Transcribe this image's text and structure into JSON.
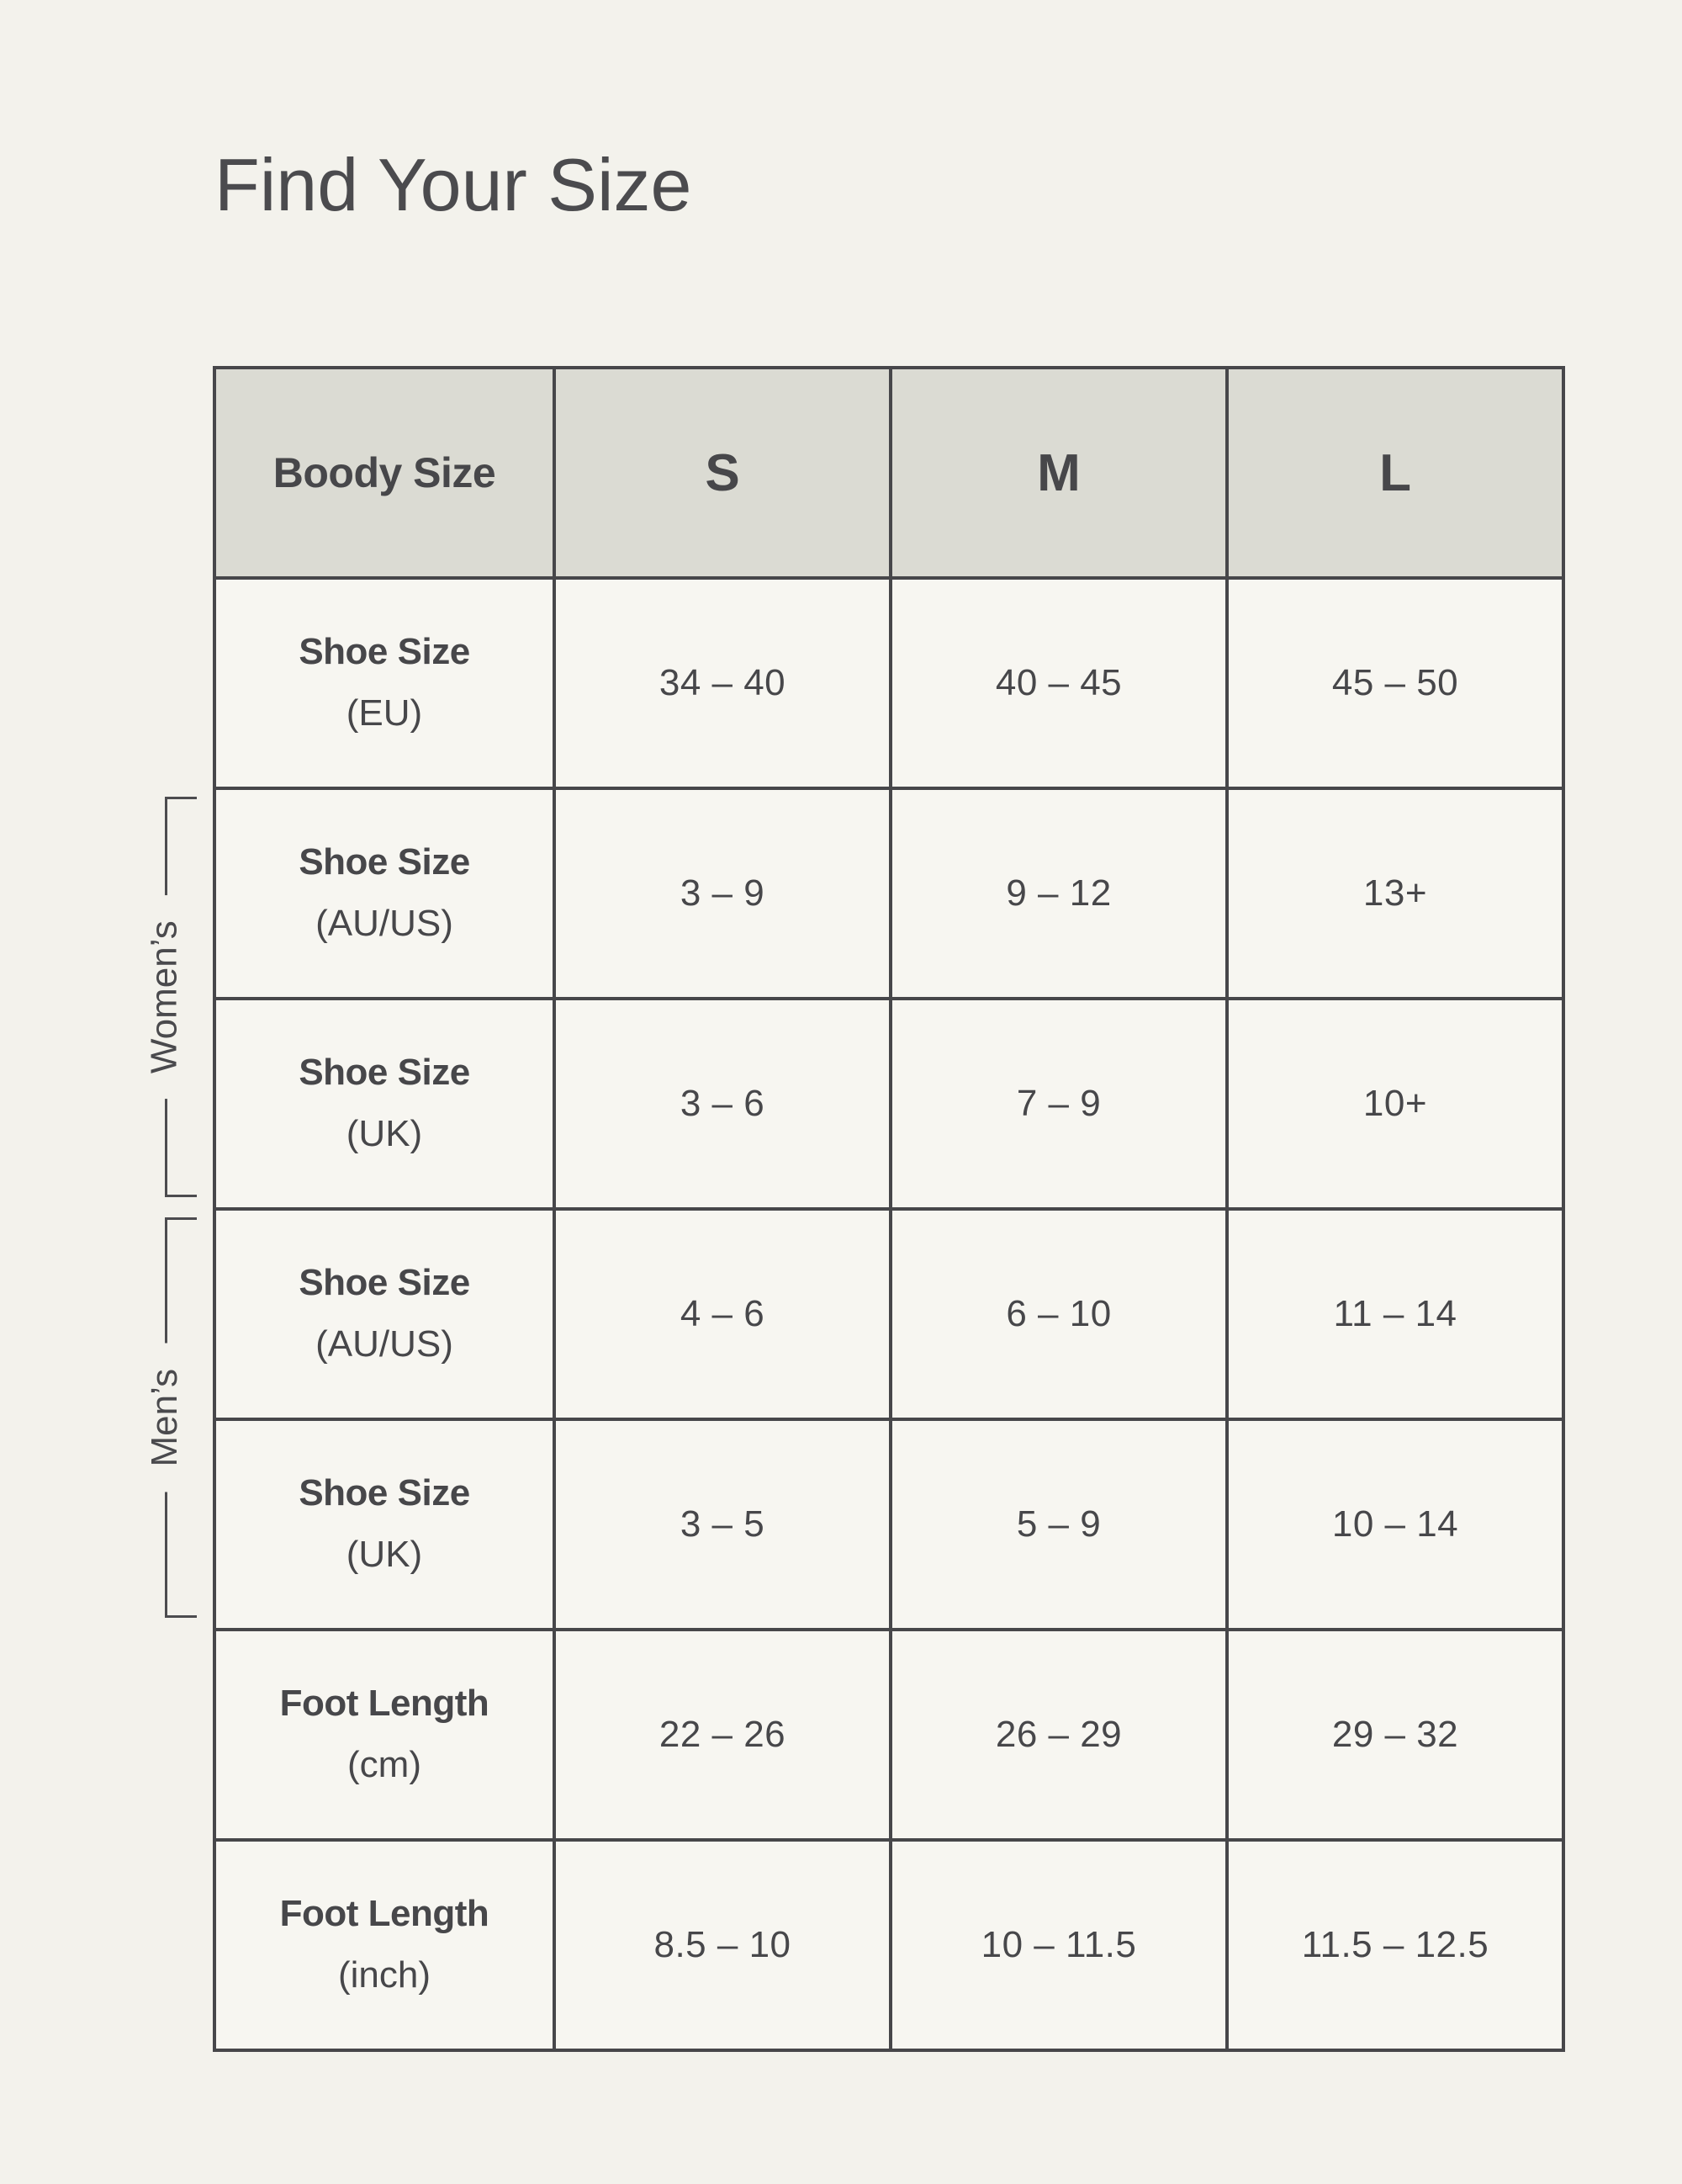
{
  "page": {
    "title": "Find Your Size"
  },
  "colors": {
    "page_bg": "#f3f2ec",
    "cell_bg": "#f7f6f1",
    "header_bg": "#dbdbd3",
    "grid_border": "#47474a",
    "text": "#47474a"
  },
  "table": {
    "corner_label": "Boody Size",
    "size_columns": [
      "S",
      "M",
      "L"
    ],
    "rows": [
      {
        "label_main": "Shoe Size",
        "label_sub": "(EU)",
        "group": "",
        "values": [
          "34 – 40",
          "40 – 45",
          "45 – 50"
        ]
      },
      {
        "label_main": "Shoe Size",
        "label_sub": "(AU/US)",
        "group": "womens",
        "values": [
          "3 – 9",
          "9 – 12",
          "13+"
        ]
      },
      {
        "label_main": "Shoe Size",
        "label_sub": "(UK)",
        "group": "womens",
        "values": [
          "3 – 6",
          "7 – 9",
          "10+"
        ]
      },
      {
        "label_main": "Shoe Size",
        "label_sub": "(AU/US)",
        "group": "mens",
        "values": [
          "4 – 6",
          "6 – 10",
          "11 – 14"
        ]
      },
      {
        "label_main": "Shoe Size",
        "label_sub": "(UK)",
        "group": "mens",
        "values": [
          "3 – 5",
          "5 – 9",
          "10 – 14"
        ]
      },
      {
        "label_main": "Foot Length",
        "label_sub": "(cm)",
        "group": "",
        "values": [
          "22 – 26",
          "26 – 29",
          "29 – 32"
        ]
      },
      {
        "label_main": "Foot Length",
        "label_sub": "(inch)",
        "group": "",
        "values": [
          "8.5 – 10",
          "10 – 11.5",
          "11.5 – 12.5"
        ]
      }
    ],
    "groups": {
      "womens": {
        "label": "Women’s"
      },
      "mens": {
        "label": "Men’s"
      }
    }
  }
}
